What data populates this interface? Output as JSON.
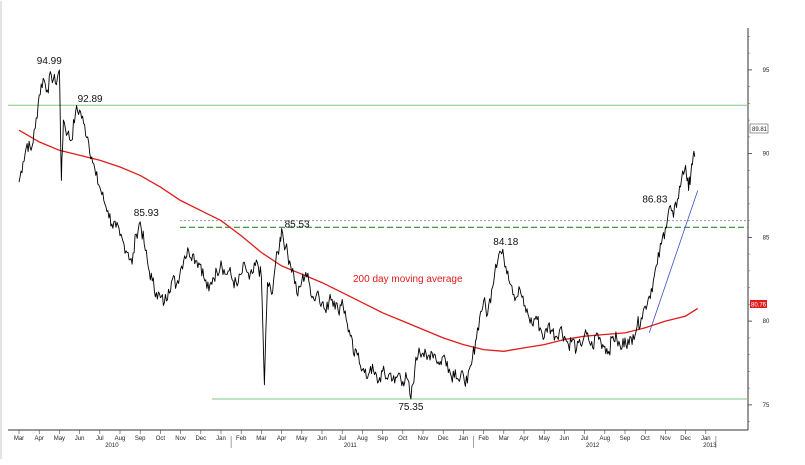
{
  "chart_data": {
    "type": "line",
    "colors": {
      "price": "#000000",
      "ma": "#e11b1b",
      "support": "#7fc97f",
      "dashed": "#2e8b2e",
      "trend": "#3a4fc4"
    },
    "ylim": [
      73.5,
      97.5
    ],
    "yticks": [
      "95",
      "90",
      "85",
      "80",
      "75"
    ],
    "xlabels": [
      "Mar",
      "Apr",
      "May",
      "Jun",
      "Jul",
      "Aug",
      "Sep",
      "Oct",
      "Nov",
      "Dec",
      "Jan",
      "Feb",
      "Mar",
      "Apr",
      "May",
      "Jun",
      "Jul",
      "Aug",
      "Sep",
      "Oct",
      "Nov",
      "Dec",
      "Jan",
      "Feb",
      "Mar",
      "Apr",
      "May",
      "Jun",
      "Jul",
      "Aug",
      "Sep",
      "Oct",
      "Nov",
      "Dec",
      "Jan"
    ],
    "year_labels": [
      "2010",
      "2011",
      "2012",
      "2013"
    ],
    "last_price_label": "89.81",
    "ma_value_label": "80.76",
    "ma_label": "200 day moving average",
    "levels": [
      {
        "value": 92.89,
        "style": "solid",
        "label": ""
      },
      {
        "value": 86.0,
        "style": "dotted",
        "label": ""
      },
      {
        "value": 85.6,
        "style": "dashed",
        "label": ""
      },
      {
        "value": 75.35,
        "style": "solid",
        "label": ""
      }
    ],
    "annotations": [
      {
        "text": "94.99",
        "month": 1.5,
        "value": 94.99
      },
      {
        "text": "92.89",
        "month": 3.0,
        "value": 92.89
      },
      {
        "text": "85.93",
        "month": 6.3,
        "value": 85.93
      },
      {
        "text": "85.53",
        "month": 13.0,
        "value": 85.53
      },
      {
        "text": "84.18",
        "month": 24.1,
        "value": 84.18
      },
      {
        "text": "75.35",
        "month": 19.4,
        "value": 75.35
      },
      {
        "text": "86.83",
        "month": 32.2,
        "value": 86.83
      }
    ],
    "price": [
      [
        0,
        88.3
      ],
      [
        0.2,
        89.5
      ],
      [
        0.4,
        90.6
      ],
      [
        0.6,
        90.2
      ],
      [
        0.8,
        91.5
      ],
      [
        1.0,
        93.5
      ],
      [
        1.2,
        94.5
      ],
      [
        1.4,
        93.8
      ],
      [
        1.6,
        94.7
      ],
      [
        1.8,
        94.2
      ],
      [
        2.0,
        94.99
      ],
      [
        2.1,
        88.4
      ],
      [
        2.2,
        92.0
      ],
      [
        2.4,
        91.2
      ],
      [
        2.6,
        90.8
      ],
      [
        2.8,
        92.5
      ],
      [
        3.0,
        92.6
      ],
      [
        3.2,
        91.8
      ],
      [
        3.4,
        91.0
      ],
      [
        3.6,
        89.8
      ],
      [
        3.8,
        88.7
      ],
      [
        4.0,
        88.0
      ],
      [
        4.2,
        87.2
      ],
      [
        4.4,
        86.6
      ],
      [
        4.6,
        85.8
      ],
      [
        4.8,
        85.6
      ],
      [
        5.0,
        85.1
      ],
      [
        5.2,
        84.6
      ],
      [
        5.4,
        84.1
      ],
      [
        5.6,
        83.4
      ],
      [
        5.8,
        85.2
      ],
      [
        6.0,
        85.93
      ],
      [
        6.2,
        84.6
      ],
      [
        6.4,
        83.2
      ],
      [
        6.6,
        82.4
      ],
      [
        6.8,
        81.7
      ],
      [
        7.0,
        81.4
      ],
      [
        7.2,
        81.1
      ],
      [
        7.4,
        81.9
      ],
      [
        7.6,
        82.5
      ],
      [
        7.8,
        82.2
      ],
      [
        8.0,
        83.1
      ],
      [
        8.2,
        83.9
      ],
      [
        8.4,
        84.2
      ],
      [
        8.6,
        84.0
      ],
      [
        8.8,
        83.6
      ],
      [
        9.0,
        83.4
      ],
      [
        9.2,
        82.4
      ],
      [
        9.4,
        81.8
      ],
      [
        9.6,
        82.6
      ],
      [
        9.8,
        82.9
      ],
      [
        10.0,
        83.6
      ],
      [
        10.2,
        82.8
      ],
      [
        10.4,
        83.0
      ],
      [
        10.6,
        82.4
      ],
      [
        10.8,
        82.1
      ],
      [
        11.0,
        82.8
      ],
      [
        11.2,
        83.3
      ],
      [
        11.4,
        82.5
      ],
      [
        11.6,
        82.9
      ],
      [
        11.8,
        83.5
      ],
      [
        12.0,
        82.6
      ],
      [
        12.15,
        76.2
      ],
      [
        12.3,
        82.3
      ],
      [
        12.5,
        81.6
      ],
      [
        12.7,
        83.4
      ],
      [
        12.9,
        84.6
      ],
      [
        13.0,
        85.53
      ],
      [
        13.2,
        84.4
      ],
      [
        13.4,
        83.6
      ],
      [
        13.6,
        82.8
      ],
      [
        13.8,
        81.5
      ],
      [
        14.0,
        82.4
      ],
      [
        14.2,
        82.9
      ],
      [
        14.4,
        82.1
      ],
      [
        14.6,
        81.3
      ],
      [
        14.8,
        81.8
      ],
      [
        15.0,
        81.1
      ],
      [
        15.2,
        80.5
      ],
      [
        15.4,
        81.6
      ],
      [
        15.6,
        81.2
      ],
      [
        15.8,
        80.6
      ],
      [
        16.0,
        81.3
      ],
      [
        16.2,
        80.1
      ],
      [
        16.4,
        79.1
      ],
      [
        16.6,
        77.9
      ],
      [
        16.8,
        78.1
      ],
      [
        17.0,
        77.1
      ],
      [
        17.2,
        76.6
      ],
      [
        17.4,
        77.3
      ],
      [
        17.6,
        76.8
      ],
      [
        17.8,
        76.4
      ],
      [
        18.0,
        77.0
      ],
      [
        18.2,
        76.6
      ],
      [
        18.4,
        76.9
      ],
      [
        18.6,
        76.3
      ],
      [
        18.8,
        76.9
      ],
      [
        19.0,
        76.4
      ],
      [
        19.2,
        76.6
      ],
      [
        19.4,
        75.35
      ],
      [
        19.6,
        77.2
      ],
      [
        19.8,
        78.4
      ],
      [
        20.0,
        78.1
      ],
      [
        20.2,
        77.7
      ],
      [
        20.4,
        78.2
      ],
      [
        20.6,
        78.0
      ],
      [
        20.8,
        77.4
      ],
      [
        21.0,
        77.9
      ],
      [
        21.2,
        77.6
      ],
      [
        21.4,
        76.7
      ],
      [
        21.6,
        77.1
      ],
      [
        21.8,
        76.4
      ],
      [
        22.0,
        76.8
      ],
      [
        22.2,
        76.3
      ],
      [
        22.4,
        77.4
      ],
      [
        22.6,
        78.8
      ],
      [
        22.8,
        80.2
      ],
      [
        23.0,
        81.2
      ],
      [
        23.2,
        80.4
      ],
      [
        23.4,
        81.9
      ],
      [
        23.6,
        83.4
      ],
      [
        23.8,
        84.18
      ],
      [
        24.0,
        83.8
      ],
      [
        24.2,
        83.0
      ],
      [
        24.4,
        82.1
      ],
      [
        24.6,
        81.4
      ],
      [
        24.8,
        81.9
      ],
      [
        25.0,
        80.9
      ],
      [
        25.2,
        80.4
      ],
      [
        25.4,
        79.8
      ],
      [
        25.6,
        80.3
      ],
      [
        25.8,
        79.6
      ],
      [
        26.0,
        79.0
      ],
      [
        26.2,
        79.8
      ],
      [
        26.4,
        79.4
      ],
      [
        26.6,
        79.1
      ],
      [
        26.8,
        79.6
      ],
      [
        27.0,
        79.1
      ],
      [
        27.2,
        78.6
      ],
      [
        27.4,
        78.9
      ],
      [
        27.6,
        78.3
      ],
      [
        27.8,
        78.6
      ],
      [
        28.0,
        79.2
      ],
      [
        28.2,
        78.9
      ],
      [
        28.4,
        78.4
      ],
      [
        28.6,
        79.3
      ],
      [
        28.8,
        78.8
      ],
      [
        29.0,
        78.5
      ],
      [
        29.2,
        78.2
      ],
      [
        29.4,
        79.1
      ],
      [
        29.6,
        78.9
      ],
      [
        29.8,
        78.3
      ],
      [
        30.0,
        79.0
      ],
      [
        30.2,
        78.6
      ],
      [
        30.4,
        79.2
      ],
      [
        30.6,
        79.7
      ],
      [
        30.8,
        80.2
      ],
      [
        31.0,
        80.9
      ],
      [
        31.2,
        81.5
      ],
      [
        31.4,
        82.4
      ],
      [
        31.6,
        83.4
      ],
      [
        31.8,
        84.6
      ],
      [
        32.0,
        85.6
      ],
      [
        32.2,
        86.83
      ],
      [
        32.4,
        86.2
      ],
      [
        32.6,
        87.3
      ],
      [
        32.8,
        88.5
      ],
      [
        33.0,
        89.3
      ],
      [
        33.15,
        87.8
      ],
      [
        33.3,
        89.4
      ],
      [
        33.45,
        89.81
      ]
    ],
    "ma200": [
      [
        0,
        91.4
      ],
      [
        1,
        90.7
      ],
      [
        2,
        90.2
      ],
      [
        3,
        89.9
      ],
      [
        4,
        89.6
      ],
      [
        5,
        89.2
      ],
      [
        6,
        88.7
      ],
      [
        7,
        88.0
      ],
      [
        8,
        87.2
      ],
      [
        9,
        86.6
      ],
      [
        10,
        86.0
      ],
      [
        11,
        85.1
      ],
      [
        12,
        84.1
      ],
      [
        13,
        83.3
      ],
      [
        14,
        82.8
      ],
      [
        15,
        82.3
      ],
      [
        16,
        81.7
      ],
      [
        17,
        81.1
      ],
      [
        18,
        80.5
      ],
      [
        19,
        80.0
      ],
      [
        20,
        79.5
      ],
      [
        21,
        79.0
      ],
      [
        22,
        78.6
      ],
      [
        23,
        78.3
      ],
      [
        24,
        78.2
      ],
      [
        25,
        78.4
      ],
      [
        26,
        78.6
      ],
      [
        27,
        78.9
      ],
      [
        28,
        79.1
      ],
      [
        29,
        79.2
      ],
      [
        30,
        79.3
      ],
      [
        31,
        79.6
      ],
      [
        32,
        80.0
      ],
      [
        33,
        80.3
      ],
      [
        33.6,
        80.76
      ]
    ],
    "trend": [
      [
        31.2,
        79.3
      ],
      [
        33.6,
        87.8
      ]
    ]
  }
}
